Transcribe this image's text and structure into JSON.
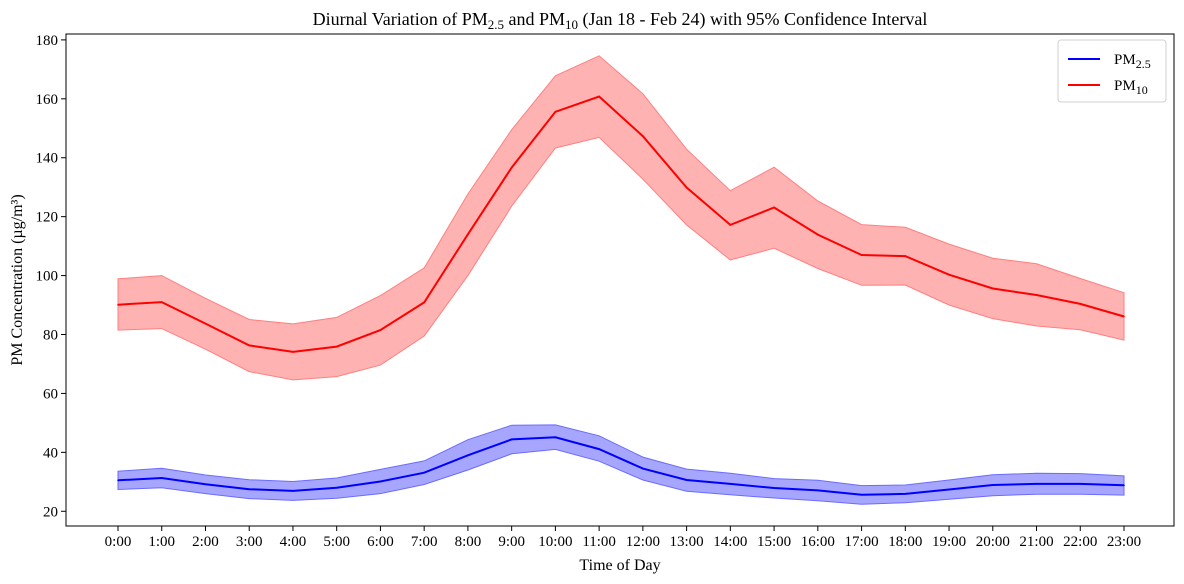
{
  "chart_data": {
    "type": "line",
    "title": "Diurnal Variation of PM2.5 and PM10 (Jan 18 - Feb 24) with 95% Confidence Interval",
    "xlabel": "Time of Day",
    "ylabel": "PM Concentration (µg/m³)",
    "categories": [
      "0:00",
      "1:00",
      "2:00",
      "3:00",
      "4:00",
      "5:00",
      "6:00",
      "7:00",
      "8:00",
      "9:00",
      "10:00",
      "11:00",
      "12:00",
      "13:00",
      "14:00",
      "15:00",
      "16:00",
      "17:00",
      "18:00",
      "19:00",
      "20:00",
      "21:00",
      "22:00",
      "23:00"
    ],
    "ylim": [
      15,
      182
    ],
    "yticks": [
      20,
      40,
      60,
      80,
      100,
      120,
      140,
      160,
      180
    ],
    "grid": false,
    "legend_position": "top-right",
    "series": [
      {
        "name": "PM2.5",
        "color": "#0000ff",
        "band_color": "#6b6bff",
        "values": [
          30.5,
          31.3,
          29.2,
          27.5,
          26.9,
          28.0,
          30.1,
          33.1,
          39.0,
          44.4,
          45.1,
          41.1,
          34.5,
          30.6,
          29.3,
          27.9,
          27.1,
          25.6,
          25.9,
          27.4,
          28.9,
          29.3,
          29.3,
          28.8
        ],
        "lower": [
          27.4,
          28.0,
          26.0,
          24.3,
          23.7,
          24.4,
          26.0,
          29.1,
          34.0,
          39.5,
          41.0,
          37.0,
          30.6,
          26.8,
          25.6,
          24.5,
          23.6,
          22.4,
          22.9,
          24.1,
          25.3,
          25.8,
          25.8,
          25.5
        ],
        "upper": [
          33.6,
          34.6,
          32.3,
          30.7,
          30.1,
          31.3,
          34.2,
          37.1,
          44.3,
          49.2,
          49.3,
          45.6,
          38.4,
          34.3,
          32.9,
          31.1,
          30.5,
          28.7,
          28.9,
          30.6,
          32.4,
          32.9,
          32.8,
          32.0
        ]
      },
      {
        "name": "PM10",
        "color": "#ff0000",
        "band_color": "#ff7f7f",
        "values": [
          90.1,
          91.0,
          83.7,
          76.3,
          74.1,
          75.9,
          81.5,
          90.9,
          114.0,
          136.7,
          155.6,
          160.8,
          147.3,
          129.9,
          117.2,
          123.1,
          113.9,
          107.0,
          106.6,
          100.3,
          95.6,
          93.4,
          90.4,
          86.1
        ],
        "lower": [
          81.5,
          82.0,
          75.0,
          67.4,
          64.6,
          65.7,
          69.6,
          79.5,
          100.0,
          123.6,
          143.3,
          146.9,
          132.7,
          117.2,
          105.3,
          109.3,
          102.4,
          96.7,
          96.8,
          90.0,
          85.4,
          82.9,
          81.6,
          78.1
        ],
        "upper": [
          98.9,
          100.0,
          92.3,
          85.1,
          83.6,
          85.8,
          93.2,
          102.6,
          127.7,
          149.5,
          167.8,
          174.6,
          161.7,
          142.9,
          128.8,
          136.8,
          125.3,
          117.3,
          116.4,
          110.7,
          105.9,
          104.0,
          99.0,
          94.2
        ]
      }
    ]
  },
  "title_parts": {
    "t1": "Diurnal Variation of PM",
    "t1_sub": "2.5",
    "t2": " and PM",
    "t2_sub": "10",
    "t3": " (Jan 18 - Feb 24) with 95% Confidence Interval"
  },
  "legend": [
    {
      "base": "PM",
      "sub": "2.5"
    },
    {
      "base": "PM",
      "sub": "10"
    }
  ]
}
